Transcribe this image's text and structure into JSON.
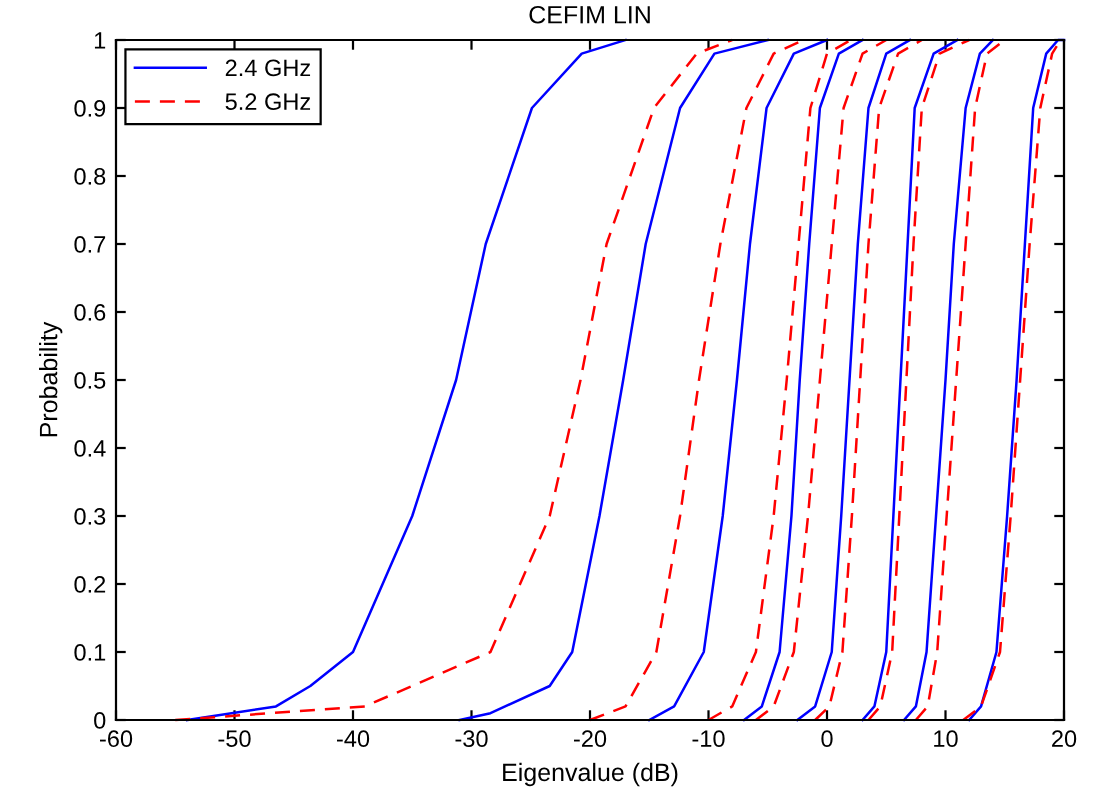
{
  "chart_data": {
    "type": "line",
    "title": "CEFIM LIN",
    "xlabel": "Eigenvalue (dB)",
    "ylabel": "Probability",
    "xlim": [
      -60,
      20
    ],
    "xticks": [
      -60,
      -50,
      -40,
      -30,
      -20,
      -10,
      0,
      10,
      20
    ],
    "ylim": [
      0,
      1
    ],
    "yticks": [
      0,
      0.1,
      0.2,
      0.3,
      0.4,
      0.5,
      0.6,
      0.7,
      0.8,
      0.9,
      1
    ],
    "grid": false,
    "legend": "top left",
    "marker": "none",
    "series": [
      {
        "name": "2.4 GHz",
        "color": "#0000ff",
        "line_style": "solid",
        "x": [
          -54,
          -46.5,
          -43.6,
          -40,
          -35,
          -31.3,
          -28.8,
          -24.9,
          -20.7,
          -17
        ],
        "values": [
          0,
          0.02,
          0.05,
          0.1,
          0.3,
          0.5,
          0.7,
          0.9,
          0.98,
          1
        ]
      },
      {
        "color": "#0000ff",
        "line_style": "solid",
        "x": [
          -31,
          -28.4,
          -23.4,
          -21.5,
          -19.2,
          -17.2,
          -15.3,
          -12.4,
          -9.5,
          -5
        ],
        "values": [
          0,
          0.01,
          0.05,
          0.1,
          0.3,
          0.5,
          0.7,
          0.9,
          0.98,
          1
        ]
      },
      {
        "color": "#0000ff",
        "line_style": "solid",
        "x": [
          -15,
          -12.9,
          -10.4,
          -8.8,
          -7.6,
          -6.5,
          -5.1,
          -2.8,
          0
        ],
        "values": [
          0,
          0.02,
          0.1,
          0.3,
          0.5,
          0.7,
          0.9,
          0.98,
          1
        ]
      },
      {
        "color": "#0000ff",
        "line_style": "solid",
        "x": [
          -7,
          -5.5,
          -4,
          -3,
          -2.3,
          -1.5,
          -0.6,
          1,
          3
        ],
        "values": [
          0,
          0.02,
          0.1,
          0.3,
          0.5,
          0.7,
          0.9,
          0.98,
          1
        ]
      },
      {
        "color": "#0000ff",
        "line_style": "solid",
        "x": [
          -2.5,
          -1,
          0.4,
          1.2,
          1.9,
          2.6,
          3.5,
          5,
          7
        ],
        "values": [
          0,
          0.02,
          0.1,
          0.3,
          0.5,
          0.7,
          0.9,
          0.98,
          1
        ]
      },
      {
        "color": "#0000ff",
        "line_style": "solid",
        "x": [
          3,
          4,
          5,
          5.6,
          6.2,
          6.8,
          7.4,
          9,
          11
        ],
        "values": [
          0,
          0.02,
          0.1,
          0.3,
          0.5,
          0.7,
          0.9,
          0.98,
          1
        ]
      },
      {
        "color": "#0000ff",
        "line_style": "solid",
        "x": [
          6.5,
          7.5,
          8.4,
          9.2,
          10,
          10.7,
          11.7,
          12.9,
          14
        ],
        "values": [
          0,
          0.02,
          0.1,
          0.3,
          0.5,
          0.7,
          0.9,
          0.98,
          1
        ]
      },
      {
        "color": "#0000ff",
        "line_style": "solid",
        "x": [
          12,
          13,
          14.3,
          15.2,
          16,
          16.7,
          17.4,
          18.5,
          19.5,
          20
        ],
        "values": [
          0,
          0.02,
          0.1,
          0.3,
          0.5,
          0.7,
          0.9,
          0.98,
          1,
          1
        ]
      },
      {
        "name": "5.2 GHz",
        "color": "#ff0000",
        "line_style": "dashed",
        "x": [
          -55,
          -39,
          -28.4,
          -23.4,
          -20.8,
          -18.6,
          -14.6,
          -11,
          -8
        ],
        "values": [
          0,
          0.02,
          0.1,
          0.3,
          0.5,
          0.7,
          0.9,
          0.98,
          1
        ]
      },
      {
        "color": "#ff0000",
        "line_style": "dashed",
        "x": [
          -20,
          -17,
          -14.4,
          -12.4,
          -10.8,
          -9,
          -6.8,
          -4.5,
          -2
        ],
        "values": [
          0,
          0.02,
          0.1,
          0.3,
          0.5,
          0.7,
          0.9,
          0.98,
          1
        ]
      },
      {
        "color": "#ff0000",
        "line_style": "dashed",
        "x": [
          -10,
          -8,
          -6,
          -4.5,
          -3.4,
          -2.4,
          -1.4,
          0,
          2
        ],
        "values": [
          0,
          0.02,
          0.1,
          0.3,
          0.5,
          0.7,
          0.9,
          0.98,
          1
        ]
      },
      {
        "color": "#ff0000",
        "line_style": "dashed",
        "x": [
          -6,
          -4.5,
          -2.8,
          -1.6,
          -0.6,
          0.4,
          1.4,
          3,
          5
        ],
        "values": [
          0,
          0.02,
          0.1,
          0.3,
          0.5,
          0.7,
          0.9,
          0.98,
          1
        ]
      },
      {
        "color": "#ff0000",
        "line_style": "dashed",
        "x": [
          -1,
          0.2,
          1.3,
          2.1,
          2.8,
          3.5,
          4.4,
          6,
          8
        ],
        "values": [
          0,
          0.02,
          0.1,
          0.3,
          0.5,
          0.7,
          0.9,
          0.98,
          1
        ]
      },
      {
        "color": "#ff0000",
        "line_style": "dashed",
        "x": [
          3.5,
          4.5,
          5.5,
          6.1,
          6.7,
          7.3,
          8,
          9.5,
          12
        ],
        "values": [
          0,
          0.02,
          0.1,
          0.3,
          0.5,
          0.7,
          0.9,
          0.98,
          1
        ]
      },
      {
        "color": "#ff0000",
        "line_style": "dashed",
        "x": [
          7.5,
          8.5,
          9.3,
          10.1,
          10.9,
          11.7,
          12.5,
          13.5,
          15
        ],
        "values": [
          0,
          0.02,
          0.1,
          0.3,
          0.5,
          0.7,
          0.9,
          0.98,
          1
        ]
      },
      {
        "color": "#ff0000",
        "line_style": "dashed",
        "x": [
          11.5,
          13,
          14.6,
          15.5,
          16.3,
          17.1,
          18,
          19,
          19.7
        ],
        "values": [
          0,
          0.02,
          0.1,
          0.3,
          0.5,
          0.7,
          0.9,
          0.98,
          1
        ]
      }
    ]
  }
}
